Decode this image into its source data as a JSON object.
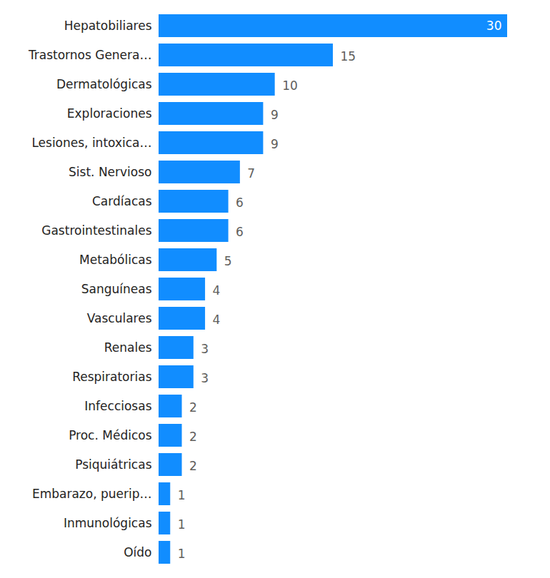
{
  "chart_data": {
    "type": "bar",
    "orientation": "horizontal",
    "categories": [
      "Hepatobiliares",
      "Trastornos Genera…",
      "Dermatológicas",
      "Exploraciones",
      "Lesiones, intoxica…",
      "Sist. Nervioso",
      "Cardíacas",
      "Gastrointestinales",
      "Metabólicas",
      "Sanguíneas",
      "Vasculares",
      "Renales",
      "Respiratorias",
      "Infecciosas",
      "Proc. Médicos",
      "Psiquiátricas",
      "Embarazo, puerip…",
      "Inmunológicas",
      "Oído"
    ],
    "values": [
      30,
      15,
      10,
      9,
      9,
      7,
      6,
      6,
      5,
      4,
      4,
      3,
      3,
      2,
      2,
      2,
      1,
      1,
      1
    ],
    "color": "#118dff",
    "xlim": [
      0,
      30
    ],
    "data_labels": true,
    "tick_labels": "y",
    "grid": false
  }
}
